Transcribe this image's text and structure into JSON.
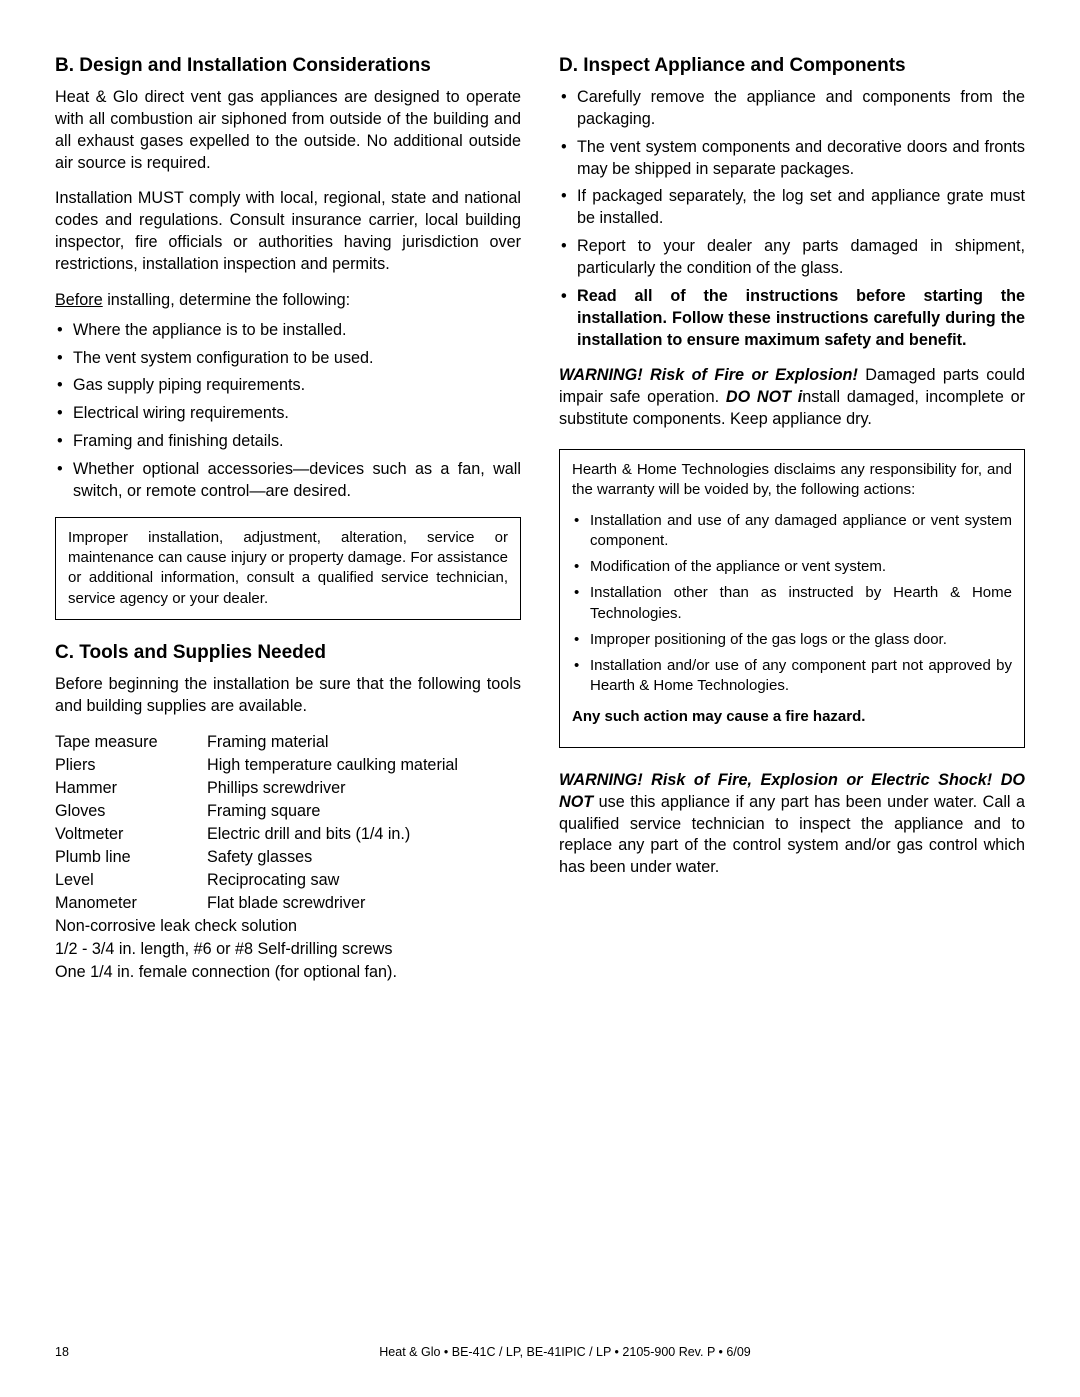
{
  "sectionB": {
    "heading": "B.  Design and Installation Considerations",
    "para1": "Heat & Glo direct vent gas appliances are designed to operate with all combustion air siphoned from outside of the building and all exhaust gases expelled to the outside. No additional outside air source is required.",
    "para2": "Installation MUST comply with local, regional, state and national codes and regulations. Consult insurance carrier, local building inspector, ﬁre ofﬁcials or authorities having jurisdiction over restrictions, installation inspection and permits.",
    "beforeLabel": "Before",
    "beforeRest": " installing, determine the following:",
    "bullets": [
      "Where the appliance is to be installed.",
      "The vent system conﬁguration to be used.",
      "Gas supply piping requirements.",
      "Electrical wiring requirements.",
      "Framing and ﬁnishing details.",
      "Whether optional accessories—devices such as a fan, wall switch, or remote control—are desired."
    ],
    "boxText": "Improper installation, adjustment, alteration, service or maintenance can cause injury or property damage. For assistance or additional information, consult a qualiﬁed service technician, service agency or your dealer."
  },
  "sectionC": {
    "heading": "C.  Tools and Supplies Needed",
    "intro": "Before beginning the installation be sure that the following tools and building supplies are available.",
    "rows": [
      [
        "Tape measure",
        "Framing material"
      ],
      [
        "Pliers",
        "High temperature caulking material"
      ],
      [
        "Hammer",
        "Phillips screwdriver"
      ],
      [
        "Gloves",
        "Framing square"
      ],
      [
        "Voltmeter",
        "Electric drill and bits (1/4 in.)"
      ],
      [
        "Plumb line",
        "Safety glasses"
      ],
      [
        "Level",
        "Reciprocating saw"
      ],
      [
        "Manometer",
        "Flat blade screwdriver"
      ]
    ],
    "fullRows": [
      "Non-corrosive leak check solution",
      "1/2 - 3/4 in. length, #6 or #8 Self-drilling screws",
      "One 1/4 in. female connection (for optional fan)."
    ]
  },
  "sectionD": {
    "heading": "D.  Inspect Appliance and Components",
    "bullets": [
      "Carefully remove the appliance and components from the packaging.",
      "The vent system components and decorative doors and fronts may be shipped in separate packages.",
      "If packaged separately, the log set and appliance grate must be installed.",
      "Report to your dealer any parts damaged in shipment, particularly the condition of the glass."
    ],
    "boldBullet": "Read all of the instructions before starting the installation. Follow these instructions carefully during the installation to ensure maximum safety and beneﬁt.",
    "warn1": {
      "lead": "WARNING! Risk of Fire or Explosion! ",
      "mid": "Damaged parts could impair safe operation. ",
      "donot": "DO NOT i",
      "rest": "nstall damaged, incomplete or substitute components. Keep appliance dry."
    },
    "box": {
      "intro": "Hearth & Home Technologies disclaims any responsibility for, and the warranty will be voided by, the following actions:",
      "bullets": [
        "Installation and use of any damaged appliance or vent system component.",
        "Modiﬁcation of the appliance or vent system.",
        "Installation other than as instructed by Hearth & Home Technologies.",
        "Improper positioning of the gas logs or the glass door.",
        "Installation and/or use of any component part not approved by Hearth & Home Technologies."
      ],
      "bottom": "Any such action may cause a ﬁre hazard."
    },
    "warn2": {
      "lead": "WARNING! Risk of Fire, Explosion or Electric Shock! DO NOT",
      "rest": " use this appliance if any part has been under water. Call a qualiﬁed service technician to inspect the appliance and to replace any part of the control system and/or gas control which has been under water."
    }
  },
  "footer": {
    "pageNum": "18",
    "text": "Heat & Glo  •  BE-41C / LP,   BE-41IPIC / LP  •  2105-900  Rev. P  •  6/09"
  }
}
